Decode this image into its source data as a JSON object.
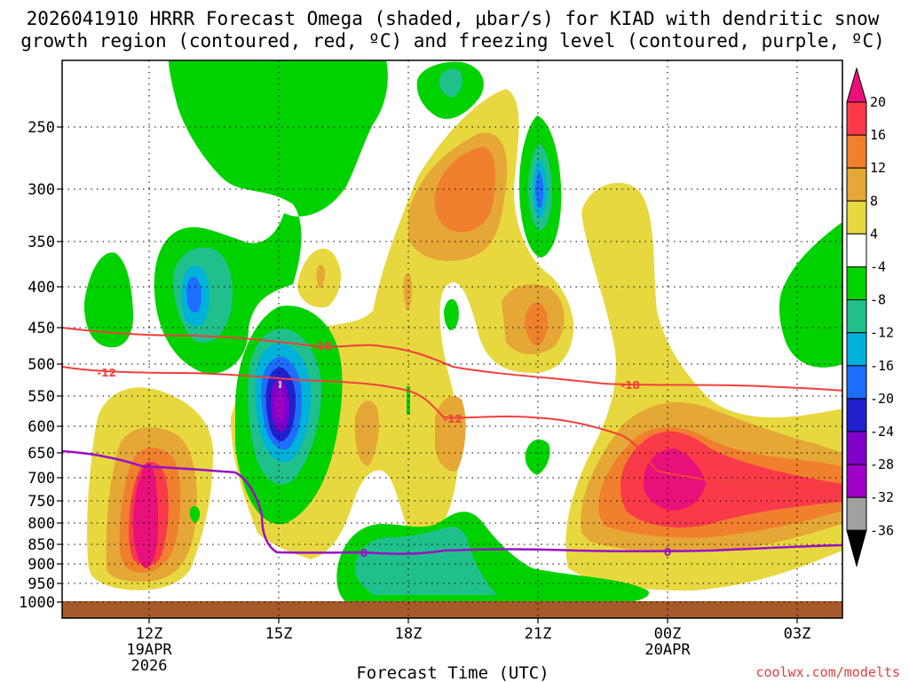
{
  "chart_data": {
    "type": "heatmap",
    "title_line1": "2026041910 HRRR Forecast Omega (shaded, μbar/s) for KIAD with dendritic snow",
    "title_line2": "growth region (contoured, red, ºC) and freezing level (contoured, purple, ºC)",
    "xlabel": "Forecast Time (UTC)",
    "credit": "coolwx.com/modelts",
    "x_ticks": [
      {
        "label": "12Z",
        "sub1": "19APR",
        "sub2": "2026",
        "hour": 12
      },
      {
        "label": "15Z",
        "sub1": "",
        "sub2": "",
        "hour": 15
      },
      {
        "label": "18Z",
        "sub1": "",
        "sub2": "",
        "hour": 18
      },
      {
        "label": "21Z",
        "sub1": "",
        "sub2": "",
        "hour": 21
      },
      {
        "label": "00Z",
        "sub1": "20APR",
        "sub2": "",
        "hour": 24
      },
      {
        "label": "03Z",
        "sub1": "",
        "sub2": "",
        "hour": 27
      }
    ],
    "x_range": [
      10,
      28
    ],
    "y_ticks": [
      250,
      300,
      350,
      400,
      450,
      500,
      550,
      600,
      650,
      700,
      750,
      800,
      850,
      900,
      950,
      1000
    ],
    "y_range_hpa": [
      200,
      1013
    ],
    "colorbar_labels": [
      "20",
      "16",
      "12",
      "8",
      "4",
      "-4",
      "-8",
      "-12",
      "-16",
      "-20",
      "-24",
      "-28",
      "-32",
      "-36"
    ],
    "colorbar_colors": [
      "#e8117a",
      "#f93a49",
      "#f0802d",
      "#e5a736",
      "#e8d840",
      "#ffffff",
      "#00d200",
      "#20c08c",
      "#00b2d8",
      "#1e6eff",
      "#2020cc",
      "#8000cc",
      "#a000c8",
      "#a0a0a0",
      "#000000"
    ],
    "contour_labels_red": [
      "-18",
      "-12",
      "-18",
      "-12"
    ],
    "contour_labels_purple": [
      "0",
      "0"
    ],
    "colors": {
      "red_contour": "#f0403c",
      "purple_contour": "#9a10c8",
      "ground": "#a65a2a"
    }
  }
}
